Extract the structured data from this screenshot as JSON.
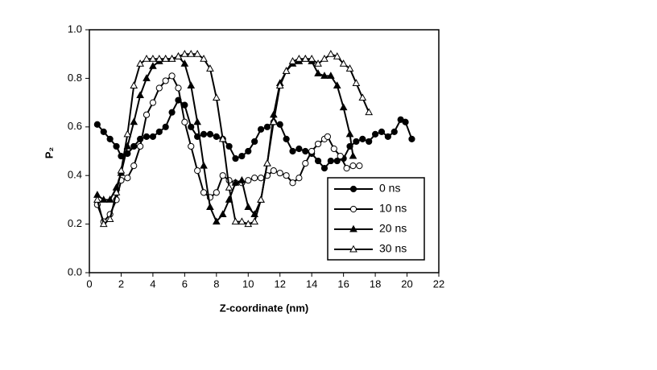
{
  "chart_data": {
    "type": "line",
    "x_label": "Z-coordinate (nm)",
    "y_label": "P₂",
    "xlim": [
      0,
      22
    ],
    "xticks": [
      0,
      2,
      4,
      6,
      8,
      10,
      12,
      14,
      16,
      18,
      20,
      22
    ],
    "ylim": [
      0,
      1
    ],
    "yticks": [
      {
        "value": 0,
        "label": "0.0"
      },
      {
        "value": 0.2,
        "label": "0.2"
      },
      {
        "value": 0.4,
        "label": "0.4"
      },
      {
        "value": 0.6,
        "label": "0.6"
      },
      {
        "value": 0.8,
        "label": "0.8"
      },
      {
        "value": 1,
        "label": "1.0"
      }
    ],
    "legend": "lower right",
    "series": [
      {
        "name": "0 ns",
        "color": "#000000",
        "marker": "circle",
        "marker_fill": "filled",
        "x": [
          0.5,
          0.9,
          1.3,
          1.7,
          2.0,
          2.4,
          2.8,
          3.2,
          3.6,
          4.0,
          4.4,
          4.8,
          5.2,
          5.6,
          6.0,
          6.4,
          6.8,
          7.2,
          7.6,
          8.0,
          8.4,
          8.8,
          9.2,
          9.6,
          10.0,
          10.4,
          10.8,
          11.2,
          11.6,
          12.0,
          12.4,
          12.8,
          13.2,
          13.6,
          14.0,
          14.4,
          14.8,
          15.2,
          15.6,
          16.0,
          16.4,
          16.8,
          17.2,
          17.6,
          18.0,
          18.4,
          18.8,
          19.2,
          19.6,
          19.9,
          20.3
        ],
        "values": [
          0.61,
          0.58,
          0.55,
          0.52,
          0.48,
          0.49,
          0.52,
          0.55,
          0.56,
          0.56,
          0.58,
          0.6,
          0.66,
          0.71,
          0.69,
          0.6,
          0.56,
          0.57,
          0.57,
          0.56,
          0.55,
          0.52,
          0.47,
          0.48,
          0.5,
          0.54,
          0.59,
          0.6,
          0.62,
          0.61,
          0.55,
          0.5,
          0.51,
          0.5,
          0.49,
          0.46,
          0.43,
          0.46,
          0.46,
          0.47,
          0.52,
          0.54,
          0.55,
          0.54,
          0.57,
          0.58,
          0.56,
          0.58,
          0.63,
          0.62,
          0.55
        ]
      },
      {
        "name": "10 ns",
        "color": "#000000",
        "marker": "circle",
        "marker_fill": "open",
        "x": [
          0.5,
          0.9,
          1.3,
          1.7,
          2.0,
          2.4,
          2.8,
          3.2,
          3.6,
          4.0,
          4.4,
          4.8,
          5.2,
          5.6,
          6.0,
          6.4,
          6.8,
          7.2,
          7.6,
          8.0,
          8.4,
          8.8,
          9.2,
          9.6,
          10.0,
          10.4,
          10.8,
          11.2,
          11.6,
          12.0,
          12.4,
          12.8,
          13.2,
          13.6,
          14.0,
          14.4,
          14.8,
          15.0,
          15.4,
          15.8,
          16.2,
          16.6,
          17.0
        ],
        "values": [
          0.28,
          0.21,
          0.24,
          0.3,
          0.38,
          0.39,
          0.44,
          0.52,
          0.65,
          0.7,
          0.76,
          0.79,
          0.81,
          0.76,
          0.62,
          0.52,
          0.42,
          0.33,
          0.31,
          0.33,
          0.4,
          0.38,
          0.37,
          0.37,
          0.38,
          0.39,
          0.39,
          0.4,
          0.42,
          0.41,
          0.4,
          0.37,
          0.39,
          0.45,
          0.5,
          0.53,
          0.55,
          0.56,
          0.51,
          0.48,
          0.43,
          0.44,
          0.44
        ]
      },
      {
        "name": "20 ns",
        "color": "#000000",
        "marker": "triangle",
        "marker_fill": "filled",
        "x": [
          0.5,
          0.9,
          1.3,
          1.7,
          2.0,
          2.4,
          2.8,
          3.2,
          3.6,
          4.0,
          4.4,
          4.8,
          5.2,
          5.6,
          6.0,
          6.4,
          6.8,
          7.2,
          7.6,
          8.0,
          8.4,
          8.8,
          9.2,
          9.6,
          10.0,
          10.4,
          10.8,
          11.2,
          11.6,
          12.0,
          12.4,
          12.8,
          13.2,
          13.6,
          14.0,
          14.4,
          14.8,
          15.2,
          15.6,
          16.0,
          16.4,
          16.6
        ],
        "values": [
          0.32,
          0.3,
          0.3,
          0.35,
          0.41,
          0.52,
          0.62,
          0.73,
          0.8,
          0.85,
          0.87,
          0.88,
          0.88,
          0.89,
          0.86,
          0.77,
          0.62,
          0.44,
          0.27,
          0.21,
          0.24,
          0.3,
          0.37,
          0.38,
          0.27,
          0.24,
          0.3,
          0.45,
          0.65,
          0.78,
          0.83,
          0.86,
          0.87,
          0.88,
          0.87,
          0.82,
          0.81,
          0.81,
          0.77,
          0.68,
          0.57,
          0.48
        ]
      },
      {
        "name": "30 ns",
        "color": "#000000",
        "marker": "triangle",
        "marker_fill": "open",
        "x": [
          0.5,
          0.9,
          1.3,
          1.7,
          2.0,
          2.4,
          2.8,
          3.2,
          3.6,
          4.0,
          4.4,
          4.8,
          5.2,
          5.6,
          6.0,
          6.4,
          6.8,
          7.2,
          7.6,
          8.0,
          8.4,
          8.8,
          9.2,
          9.6,
          10.0,
          10.4,
          10.8,
          11.2,
          11.6,
          12.0,
          12.4,
          12.8,
          13.2,
          13.6,
          14.0,
          14.4,
          14.8,
          15.2,
          15.6,
          16.0,
          16.4,
          16.8,
          17.2,
          17.6
        ],
        "values": [
          0.3,
          0.2,
          0.22,
          0.33,
          0.42,
          0.57,
          0.77,
          0.86,
          0.88,
          0.88,
          0.88,
          0.88,
          0.88,
          0.89,
          0.9,
          0.9,
          0.9,
          0.88,
          0.84,
          0.72,
          0.55,
          0.35,
          0.21,
          0.21,
          0.2,
          0.21,
          0.3,
          0.45,
          0.62,
          0.77,
          0.83,
          0.87,
          0.88,
          0.88,
          0.88,
          0.86,
          0.88,
          0.9,
          0.89,
          0.86,
          0.84,
          0.78,
          0.72,
          0.66
        ]
      }
    ]
  }
}
